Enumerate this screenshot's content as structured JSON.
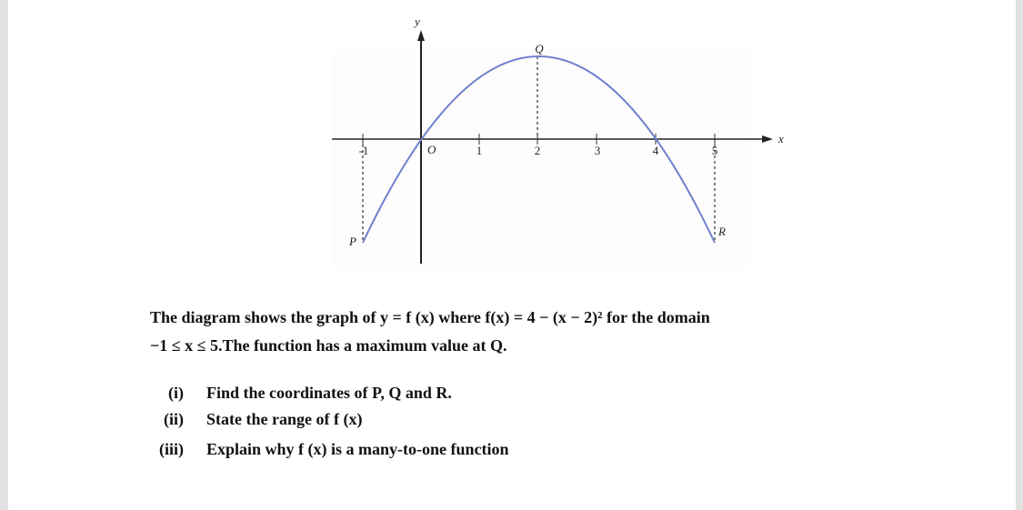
{
  "diagram": {
    "y_axis_label": "y",
    "x_axis_label": "x",
    "origin_label": "O",
    "x_tick_labels": [
      "-1",
      "1",
      "2",
      "3",
      "4",
      "5"
    ],
    "point_labels": {
      "P": "P",
      "Q": "Q",
      "R": "R"
    }
  },
  "paragraph": [
    "The diagram shows the graph of y = f (x) where f(x) = 4 − (x − 2)² for the domain",
    "−1 ≤ x ≤ 5.The function has a maximum value at Q."
  ],
  "questions": [
    {
      "number": "(i)",
      "text": "Find the coordinates of P, Q and R."
    },
    {
      "number": "(ii)",
      "text": "State the range of f (x)"
    },
    {
      "number": "(iii)",
      "text": "Explain why f (x) is a many-to-one function"
    }
  ]
}
